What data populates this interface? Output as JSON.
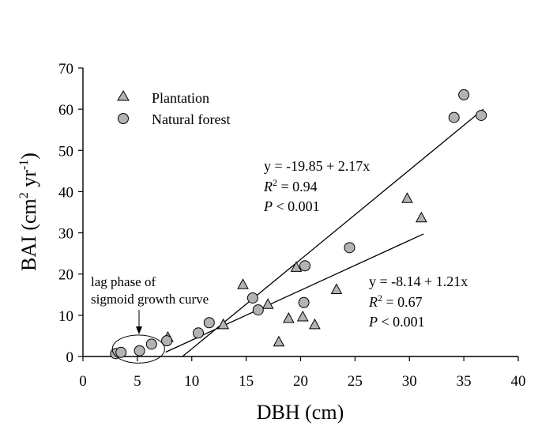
{
  "chart_data": {
    "type": "scatter",
    "title": "",
    "xlabel": "DBH (cm)",
    "ylabel": {
      "main": "BAI (cm",
      "sup1": "2",
      "mid": " yr",
      "sup2": "-1",
      "end": ")"
    },
    "xlim": [
      0,
      40
    ],
    "ylim": [
      0,
      70
    ],
    "x_ticks": [
      0,
      5,
      10,
      15,
      20,
      25,
      30,
      35,
      40
    ],
    "y_ticks": [
      0,
      10,
      20,
      30,
      40,
      50,
      60,
      70
    ],
    "legend_position": "top-left",
    "colors": {
      "marker_fill": "#b3b3b3",
      "marker_stroke": "#000000",
      "line": "#000000"
    },
    "series": [
      {
        "name": "Plantation",
        "marker": "triangle",
        "points": [
          [
            7.8,
            4.6
          ],
          [
            12.9,
            7.7
          ],
          [
            14.7,
            17.4
          ],
          [
            17.0,
            12.6
          ],
          [
            18.0,
            3.5
          ],
          [
            18.9,
            9.2
          ],
          [
            19.6,
            21.6
          ],
          [
            20.2,
            9.6
          ],
          [
            21.3,
            7.7
          ],
          [
            23.3,
            16.2
          ],
          [
            29.8,
            38.3
          ],
          [
            31.1,
            33.6
          ]
        ]
      },
      {
        "name": "Natural forest",
        "marker": "circle",
        "points": [
          [
            3.0,
            0.7
          ],
          [
            3.5,
            1.0
          ],
          [
            5.2,
            1.4
          ],
          [
            6.3,
            3.0
          ],
          [
            7.7,
            3.8
          ],
          [
            10.6,
            5.7
          ],
          [
            11.6,
            8.2
          ],
          [
            15.6,
            14.2
          ],
          [
            16.1,
            11.3
          ],
          [
            20.3,
            13.1
          ],
          [
            20.4,
            22.0
          ],
          [
            24.5,
            26.4
          ],
          [
            34.1,
            58.0
          ],
          [
            35.0,
            63.5
          ],
          [
            36.6,
            58.5
          ]
        ]
      }
    ],
    "fits": [
      {
        "name": "regression-line-steep",
        "x_range": [
          9.1,
          36.8
        ],
        "intercept": -19.85,
        "slope": 2.17,
        "equation": "y = -19.85 + 2.17x",
        "r2_label": "R",
        "r2_sup": "2",
        "r2_value": " = 0.94",
        "p_label": "P",
        "p_value": " < 0.001"
      },
      {
        "name": "regression-line-shallow",
        "x_range": [
          7.6,
          31.3
        ],
        "intercept": -8.14,
        "slope": 1.21,
        "equation": "y = -8.14 + 1.21x",
        "r2_label": "R",
        "r2_sup": "2",
        "r2_value": " = 0.67",
        "p_label": "P",
        "p_value": " < 0.001"
      }
    ],
    "annotation": {
      "line1": "lag phase of",
      "line2": "sigmoid growth curve",
      "arrow_to": [
        5.0,
        5.5
      ],
      "ellipse_center": [
        5.1,
        1.8
      ],
      "ellipse_radii": [
        2.4,
        3.4
      ]
    }
  }
}
